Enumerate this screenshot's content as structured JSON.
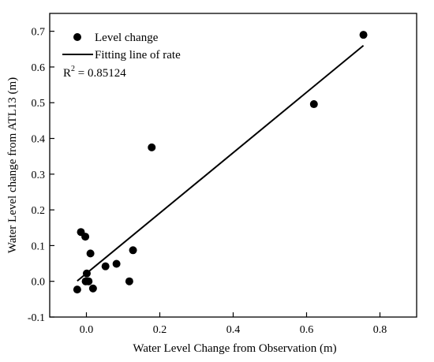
{
  "chart_data": {
    "type": "scatter",
    "title": "",
    "xlabel": "Water Level Change from Observation (m)",
    "ylabel": "Water Level change from ATL13 (m)",
    "xlim": [
      -0.1,
      0.9
    ],
    "ylim": [
      -0.1,
      0.75
    ],
    "x_ticks": [
      0.0,
      0.2,
      0.4,
      0.6,
      0.8
    ],
    "x_tick_labels": [
      "0.0",
      "0.2",
      "0.4",
      "0.6",
      "0.8"
    ],
    "y_ticks": [
      -0.1,
      0.0,
      0.1,
      0.2,
      0.3,
      0.4,
      0.5,
      0.6,
      0.7
    ],
    "y_tick_labels": [
      "-0.1",
      "0.0",
      "0.1",
      "0.2",
      "0.3",
      "0.4",
      "0.5",
      "0.6",
      "0.7"
    ],
    "grid": false,
    "legend_position": "top-left",
    "series": [
      {
        "name": "Level change",
        "kind": "scatter",
        "color": "#000000",
        "points": [
          {
            "x": -0.025,
            "y": -0.023
          },
          {
            "x": -0.015,
            "y": 0.138
          },
          {
            "x": -0.003,
            "y": 0.125
          },
          {
            "x": -0.002,
            "y": 0.0
          },
          {
            "x": 0.001,
            "y": 0.022
          },
          {
            "x": 0.006,
            "y": 0.0
          },
          {
            "x": 0.011,
            "y": 0.078
          },
          {
            "x": 0.018,
            "y": -0.02
          },
          {
            "x": 0.052,
            "y": 0.042
          },
          {
            "x": 0.082,
            "y": 0.049
          },
          {
            "x": 0.117,
            "y": 0.0
          },
          {
            "x": 0.127,
            "y": 0.087
          },
          {
            "x": 0.178,
            "y": 0.375
          },
          {
            "x": 0.62,
            "y": 0.496
          },
          {
            "x": 0.755,
            "y": 0.69
          }
        ]
      },
      {
        "name": "Fitting line of rate",
        "kind": "line",
        "color": "#000000",
        "points": [
          {
            "x": -0.025,
            "y": 0.001
          },
          {
            "x": 0.755,
            "y": 0.66
          }
        ]
      }
    ],
    "annotation": {
      "prefix": "R",
      "superscript": "2",
      "text": " = 0.85124"
    }
  }
}
